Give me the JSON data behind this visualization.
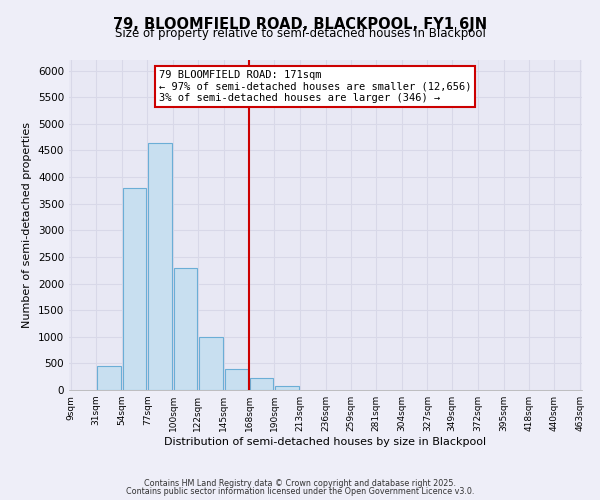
{
  "title": "79, BLOOMFIELD ROAD, BLACKPOOL, FY1 6JN",
  "subtitle": "Size of property relative to semi-detached houses in Blackpool",
  "xlabel": "Distribution of semi-detached houses by size in Blackpool",
  "ylabel": "Number of semi-detached properties",
  "footnote1": "Contains HM Land Registry data © Crown copyright and database right 2025.",
  "footnote2": "Contains public sector information licensed under the Open Government Licence v3.0.",
  "bar_edges": [
    9,
    31,
    54,
    77,
    100,
    122,
    145,
    168,
    190,
    213,
    236,
    259,
    281,
    304,
    327,
    349,
    372,
    395,
    418,
    440,
    463
  ],
  "bar_heights": [
    0,
    450,
    3800,
    4650,
    2300,
    1000,
    400,
    230,
    80,
    0,
    0,
    0,
    0,
    0,
    0,
    0,
    0,
    0,
    0,
    0
  ],
  "vline_x": 168,
  "vline_color": "#cc0000",
  "bar_color": "#c8dff0",
  "bar_edgecolor": "#6baed6",
  "annotation_title": "79 BLOOMFIELD ROAD: 171sqm",
  "annotation_line1": "← 97% of semi-detached houses are smaller (12,656)",
  "annotation_line2": "3% of semi-detached houses are larger (346) →",
  "ylim": [
    0,
    6200
  ],
  "yticks": [
    0,
    500,
    1000,
    1500,
    2000,
    2500,
    3000,
    3500,
    4000,
    4500,
    5000,
    5500,
    6000
  ],
  "xtick_labels": [
    "9sqm",
    "31sqm",
    "54sqm",
    "77sqm",
    "100sqm",
    "122sqm",
    "145sqm",
    "168sqm",
    "190sqm",
    "213sqm",
    "236sqm",
    "259sqm",
    "281sqm",
    "304sqm",
    "327sqm",
    "349sqm",
    "372sqm",
    "395sqm",
    "418sqm",
    "440sqm",
    "463sqm"
  ],
  "bg_color": "#eeeef8",
  "grid_color": "#d8d8e8",
  "plot_bg_color": "#e8e8f4"
}
